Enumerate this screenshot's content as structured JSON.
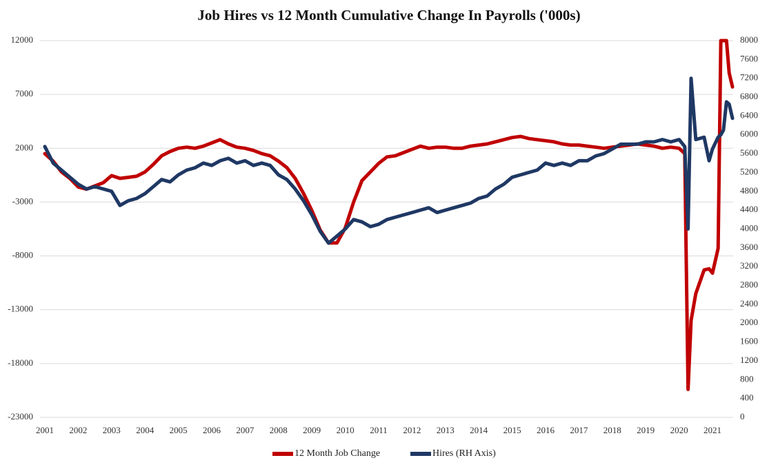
{
  "chart_data": {
    "type": "line",
    "title": "Job Hires vs 12 Month Cumulative Change In Payrolls ('000s)",
    "x": [
      2001,
      2001.25,
      2001.5,
      2001.75,
      2002,
      2002.25,
      2002.5,
      2002.75,
      2003,
      2003.25,
      2003.5,
      2003.75,
      2004,
      2004.25,
      2004.5,
      2004.75,
      2005,
      2005.25,
      2005.5,
      2005.75,
      2006,
      2006.25,
      2006.5,
      2006.75,
      2007,
      2007.25,
      2007.5,
      2007.75,
      2008,
      2008.25,
      2008.5,
      2008.75,
      2009,
      2009.25,
      2009.5,
      2009.75,
      2010,
      2010.25,
      2010.5,
      2010.75,
      2011,
      2011.25,
      2011.5,
      2011.75,
      2012,
      2012.25,
      2012.5,
      2012.75,
      2013,
      2013.25,
      2013.5,
      2013.75,
      2014,
      2014.25,
      2014.5,
      2014.75,
      2015,
      2015.25,
      2015.5,
      2015.75,
      2016,
      2016.25,
      2016.5,
      2016.75,
      2017,
      2017.25,
      2017.5,
      2017.75,
      2018,
      2018.25,
      2018.5,
      2018.75,
      2019,
      2019.25,
      2019.5,
      2019.75,
      2020,
      2020.17,
      2020.27,
      2020.36,
      2020.5,
      2020.75,
      2020.9,
      2021,
      2021.17,
      2021.25,
      2021.33,
      2021.42,
      2021.5,
      2021.6
    ],
    "series": [
      {
        "name": "12 Month Job Change",
        "color": "#c00000",
        "axis": "y",
        "values": [
          1500,
          800,
          -200,
          -800,
          -1600,
          -1800,
          -1500,
          -1200,
          -540,
          -800,
          -700,
          -600,
          -200,
          500,
          1300,
          1700,
          2000,
          2100,
          2000,
          2200,
          2500,
          2800,
          2400,
          2100,
          2000,
          1800,
          1500,
          1300,
          800,
          200,
          -800,
          -2200,
          -3800,
          -5600,
          -6800,
          -6800,
          -5400,
          -3000,
          -1000,
          -200,
          600,
          1200,
          1300,
          1600,
          1900,
          2200,
          2000,
          2100,
          2100,
          2000,
          2000,
          2200,
          2300,
          2400,
          2600,
          2800,
          3000,
          3100,
          2900,
          2800,
          2700,
          2600,
          2400,
          2300,
          2300,
          2200,
          2100,
          2000,
          2100,
          2200,
          2300,
          2400,
          2300,
          2200,
          2000,
          2100,
          2000,
          1500,
          -20400,
          -14000,
          -11500,
          -9300,
          -9200,
          -9600,
          -7300,
          12000,
          12000,
          12000,
          9000,
          7700
        ]
      },
      {
        "name": "Hires (RH Axis)",
        "color": "#1f3864",
        "axis": "y2",
        "values": [
          5750,
          5400,
          5250,
          5100,
          4950,
          4850,
          4900,
          4850,
          4800,
          4500,
          4600,
          4650,
          4750,
          4900,
          5050,
          5000,
          5150,
          5250,
          5300,
          5400,
          5350,
          5450,
          5500,
          5400,
          5450,
          5350,
          5400,
          5350,
          5150,
          5050,
          4850,
          4600,
          4300,
          3950,
          3700,
          3850,
          4000,
          4200,
          4150,
          4050,
          4100,
          4200,
          4250,
          4300,
          4350,
          4400,
          4450,
          4350,
          4400,
          4450,
          4500,
          4550,
          4650,
          4700,
          4850,
          4950,
          5100,
          5150,
          5200,
          5250,
          5400,
          5350,
          5400,
          5350,
          5450,
          5450,
          5550,
          5600,
          5700,
          5800,
          5800,
          5800,
          5850,
          5850,
          5900,
          5850,
          5900,
          5750,
          4000,
          7200,
          5900,
          5950,
          5450,
          5700,
          5950,
          6000,
          6100,
          6700,
          6650,
          6350
        ]
      }
    ],
    "xlim": [
      2001,
      2021.6
    ],
    "xticks": [
      2001,
      2002,
      2003,
      2004,
      2005,
      2006,
      2007,
      2008,
      2009,
      2010,
      2011,
      2012,
      2013,
      2014,
      2015,
      2016,
      2017,
      2018,
      2019,
      2020,
      2021
    ],
    "ylim": [
      -23000,
      12000
    ],
    "yticks": [
      -23000,
      -18000,
      -13000,
      -8000,
      -3000,
      2000,
      7000,
      12000
    ],
    "y2lim": [
      0,
      8000
    ],
    "y2ticks": [
      0,
      400,
      800,
      1200,
      1600,
      2000,
      2400,
      2800,
      3200,
      3600,
      4000,
      4400,
      4800,
      5200,
      5600,
      6000,
      6400,
      6800,
      7200,
      7600,
      8000
    ],
    "grid": true
  }
}
